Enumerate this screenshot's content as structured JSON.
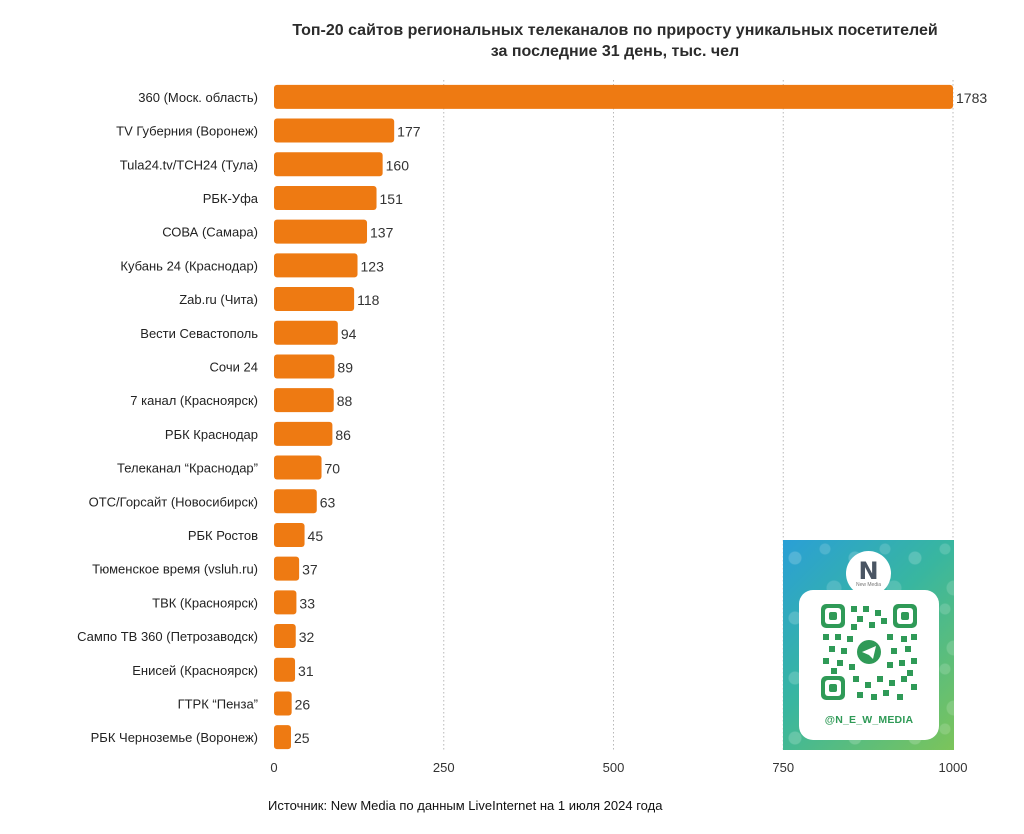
{
  "chart_data": {
    "type": "bar",
    "orientation": "horizontal",
    "title_lines": [
      "Топ-20 сайтов региональных телеканалов по приросту уникальных посетителей",
      "за последние 31 день, тыс. чел"
    ],
    "categories": [
      "360 (Моск. область)",
      "TV Губерния (Воронеж)",
      "Tula24.tv/ТСН24 (Тула)",
      "РБК-Уфа",
      "СОВА (Самара)",
      "Кубань 24 (Краснодар)",
      "Zab.ru (Чита)",
      "Вести Севастополь",
      "Сочи 24",
      "7 канал (Красноярск)",
      "РБК Краснодар",
      "Телеканал “Краснодар”",
      "ОТС/Горсайт (Новосибирск)",
      "РБК Ростов",
      "Тюменское время (vsluh.ru)",
      "ТВК (Красноярск)",
      "Сампо ТВ 360 (Петрозаводск)",
      "Енисей (Красноярск)",
      "ГТРК “Пенза”",
      "РБК Черноземье (Воронеж)"
    ],
    "values": [
      1783,
      177,
      160,
      151,
      137,
      123,
      118,
      94,
      89,
      88,
      86,
      70,
      63,
      45,
      37,
      33,
      32,
      31,
      26,
      25
    ],
    "value_labels": [
      "1783",
      "177",
      "160",
      "151",
      "137",
      "123",
      "118",
      "94",
      "89",
      "88",
      "86",
      "70",
      "63",
      "45",
      "37",
      "33",
      "32",
      "31",
      "26",
      "25"
    ],
    "xlim": [
      0,
      1000
    ],
    "x_ticks": [
      0,
      250,
      500,
      750,
      1000
    ],
    "x_tick_labels": [
      "0",
      "250",
      "500",
      "750",
      "1000"
    ],
    "grid": "vertical dotted",
    "bar_color": "#ee7a12"
  },
  "footer": {
    "source": "Источник: New Media по данным LiveInternet на 1 июля 2024 года"
  },
  "promo": {
    "logo_letter": "N",
    "logo_text": "New Media",
    "handle": "@N_E_W_MEDIA"
  }
}
